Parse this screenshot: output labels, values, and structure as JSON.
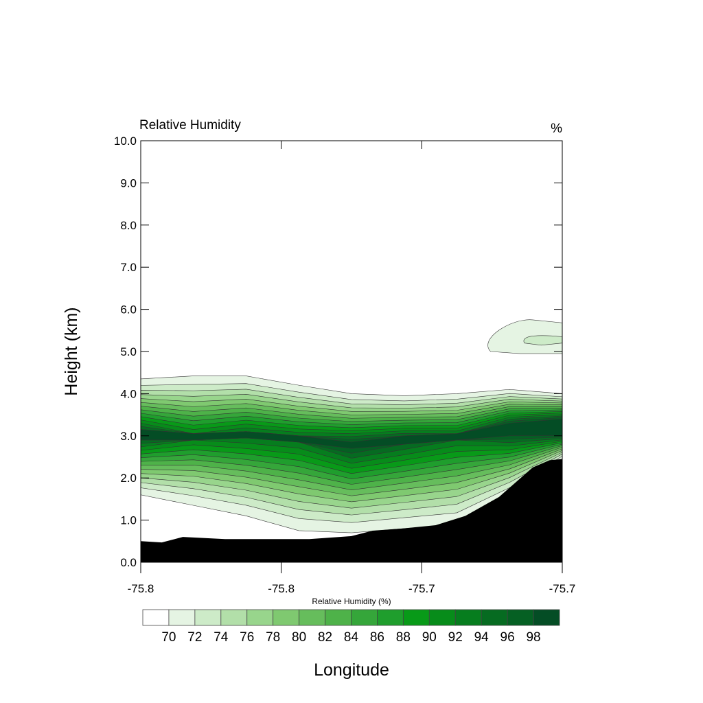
{
  "chart_data": {
    "type": "heatmap",
    "subtype": "filled-contour cross-section",
    "title": "Relative Humidity",
    "units_label": "%",
    "xlabel": "Longitude",
    "ylabel": "Height (km)",
    "ylim": [
      0,
      10
    ],
    "yticks": [
      "0.0",
      "1.0",
      "2.0",
      "3.0",
      "4.0",
      "5.0",
      "6.0",
      "7.0",
      "8.0",
      "9.0",
      "10.0"
    ],
    "xticks": [
      "-75.8",
      "-75.8",
      "-75.7",
      "-75.7"
    ],
    "colorbar": {
      "title": "Relative Humidity (%)",
      "levels": [
        "70",
        "72",
        "74",
        "76",
        "78",
        "80",
        "82",
        "84",
        "86",
        "88",
        "90",
        "92",
        "94",
        "96",
        "98"
      ],
      "colors": [
        "#ffffff",
        "#e5f4e3",
        "#cdebc8",
        "#b2dfa9",
        "#98d58c",
        "#7fc970",
        "#66bd5c",
        "#4eb249",
        "#35a63a",
        "#1f9e2d",
        "#089a18",
        "#078c1a",
        "#067d1e",
        "#066b21",
        "#056023",
        "#044d25"
      ]
    },
    "terrain_color": "#000000",
    "grid": false
  }
}
